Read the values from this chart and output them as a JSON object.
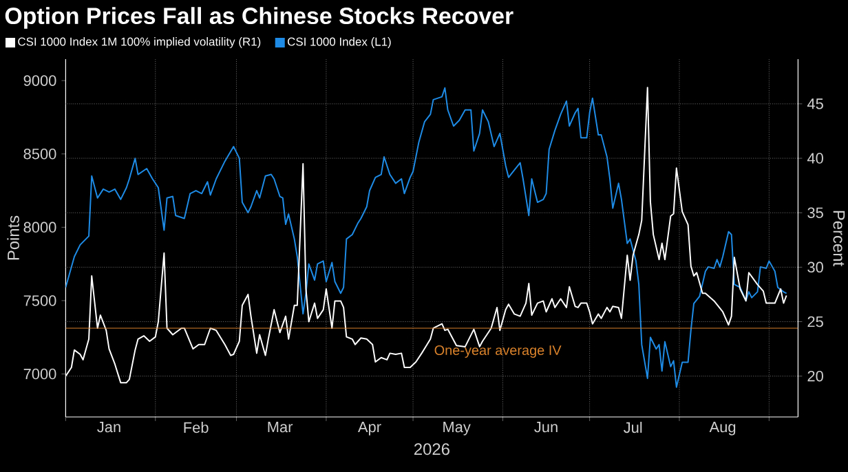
{
  "chart_data": {
    "type": "line",
    "title": "Option Prices Fall as Chinese Stocks Recover",
    "xlabel": "2026",
    "ylabel": "Points",
    "y2label": "Percent",
    "xlim": [
      "2026-01-01",
      "2026-09-11"
    ],
    "xticks": [
      {
        "value": "2026-01-01",
        "label": null
      },
      {
        "value": "2026-01-16",
        "label": "Jan"
      },
      {
        "value": "2026-02-01",
        "label": null
      },
      {
        "value": "2026-02-15",
        "label": "Feb"
      },
      {
        "value": "2026-03-01",
        "label": null
      },
      {
        "value": "2026-03-16",
        "label": "Mar"
      },
      {
        "value": "2026-04-01",
        "label": null
      },
      {
        "value": "2026-04-16",
        "label": "Apr"
      },
      {
        "value": "2026-05-01",
        "label": null
      },
      {
        "value": "2026-05-16",
        "label": "May"
      },
      {
        "value": "2026-06-01",
        "label": null
      },
      {
        "value": "2026-06-16",
        "label": "Jun"
      },
      {
        "value": "2026-07-01",
        "label": null
      },
      {
        "value": "2026-07-16",
        "label": "Jul"
      },
      {
        "value": "2026-08-01",
        "label": null
      },
      {
        "value": "2026-08-16",
        "label": "Aug"
      },
      {
        "value": "2026-09-01",
        "label": null
      }
    ],
    "ylim": [
      6707,
      9146
    ],
    "yticks": [
      7000,
      7500,
      8000,
      8500,
      9000
    ],
    "y2lim": [
      16.25,
      49.1
    ],
    "y2ticks": [
      20,
      25,
      30,
      35,
      40,
      45
    ],
    "grid": true,
    "legend": "top left",
    "line_style": "solid",
    "ref_lines": [
      {
        "axis": "y2",
        "value": 24.4,
        "label": "One-year average IV",
        "color": "#d9822b"
      }
    ],
    "series": [
      {
        "name": "CSI 1000 Index  (L1)",
        "color": "#1e8ce6",
        "axis": "y",
        "x": [
          "2026-01-01",
          "2026-01-04",
          "2026-01-06",
          "2026-01-09",
          "2026-01-10",
          "2026-01-12",
          "2026-01-14",
          "2026-01-16",
          "2026-01-17",
          "2026-01-18",
          "2026-01-20",
          "2026-01-22",
          "2026-01-23",
          "2026-01-25",
          "2026-01-26",
          "2026-01-29",
          "2026-01-31",
          "2026-02-02",
          "2026-02-04",
          "2026-02-05",
          "2026-02-07",
          "2026-02-08",
          "2026-02-11",
          "2026-02-13",
          "2026-02-15",
          "2026-02-17",
          "2026-02-19",
          "2026-02-20",
          "2026-02-22",
          "2026-02-25",
          "2026-02-28",
          "2026-03-02",
          "2026-03-03",
          "2026-03-05",
          "2026-03-06",
          "2026-03-08",
          "2026-03-09",
          "2026-03-11",
          "2026-03-13",
          "2026-03-14",
          "2026-03-16",
          "2026-03-17",
          "2026-03-18",
          "2026-03-19",
          "2026-03-21",
          "2026-03-22",
          "2026-03-24",
          "2026-03-25",
          "2026-03-26",
          "2026-03-28",
          "2026-03-29",
          "2026-03-31",
          "2026-04-01",
          "2026-04-03",
          "2026-04-04",
          "2026-04-06",
          "2026-04-07",
          "2026-04-08",
          "2026-04-10",
          "2026-04-12",
          "2026-04-13",
          "2026-04-15",
          "2026-04-16",
          "2026-04-18",
          "2026-04-20",
          "2026-04-21",
          "2026-04-23",
          "2026-04-25",
          "2026-04-27",
          "2026-04-28",
          "2026-04-30",
          "2026-05-01",
          "2026-05-03",
          "2026-05-05",
          "2026-05-07",
          "2026-05-08",
          "2026-05-11",
          "2026-05-12",
          "2026-05-13",
          "2026-05-15",
          "2026-05-17",
          "2026-05-19",
          "2026-05-21",
          "2026-05-22",
          "2026-05-24",
          "2026-05-25",
          "2026-05-27",
          "2026-05-29",
          "2026-05-31",
          "2026-06-02",
          "2026-06-03",
          "2026-06-05",
          "2026-06-07",
          "2026-06-08",
          "2026-06-10",
          "2026-06-11",
          "2026-06-13",
          "2026-06-15",
          "2026-06-16",
          "2026-06-17",
          "2026-06-19",
          "2026-06-21",
          "2026-06-23",
          "2026-06-24",
          "2026-06-26",
          "2026-06-27",
          "2026-06-28",
          "2026-06-30",
          "2026-07-01",
          "2026-07-02",
          "2026-07-04",
          "2026-07-05",
          "2026-07-07",
          "2026-07-08",
          "2026-07-09",
          "2026-07-11",
          "2026-07-12",
          "2026-07-14",
          "2026-07-15",
          "2026-07-17",
          "2026-07-18",
          "2026-07-19",
          "2026-07-21",
          "2026-07-22",
          "2026-07-24",
          "2026-07-25",
          "2026-07-26",
          "2026-07-27",
          "2026-07-29",
          "2026-07-30",
          "2026-07-31",
          "2026-08-02",
          "2026-08-04",
          "2026-08-05",
          "2026-08-06",
          "2026-08-08",
          "2026-08-10",
          "2026-08-11",
          "2026-08-13",
          "2026-08-14",
          "2026-08-15",
          "2026-08-16",
          "2026-08-18",
          "2026-08-19",
          "2026-08-20",
          "2026-08-22",
          "2026-08-24",
          "2026-08-25",
          "2026-08-26",
          "2026-08-28",
          "2026-08-29",
          "2026-08-31",
          "2026-09-01",
          "2026-09-03",
          "2026-09-04",
          "2026-09-06",
          "2026-09-07"
        ],
        "values": [
          7590,
          7800,
          7880,
          7940,
          8350,
          8200,
          8260,
          8240,
          8250,
          8260,
          8190,
          8270,
          8330,
          8470,
          8360,
          8400,
          8330,
          8270,
          7980,
          8200,
          8210,
          8080,
          8060,
          8230,
          8250,
          8230,
          8310,
          8220,
          8330,
          8450,
          8550,
          8470,
          8170,
          8100,
          8140,
          8250,
          8200,
          8350,
          8360,
          8330,
          8210,
          8200,
          8020,
          8090,
          7920,
          7800,
          7410,
          7550,
          7750,
          7640,
          7750,
          7770,
          7630,
          7760,
          7630,
          7550,
          7590,
          7920,
          7950,
          8030,
          8060,
          8140,
          8250,
          8340,
          8360,
          8480,
          8360,
          8300,
          8330,
          8230,
          8340,
          8380,
          8580,
          8720,
          8770,
          8870,
          8890,
          8950,
          8800,
          8690,
          8730,
          8800,
          8800,
          8520,
          8640,
          8800,
          8720,
          8550,
          8640,
          8420,
          8340,
          8390,
          8440,
          8330,
          8080,
          8330,
          8170,
          8190,
          8230,
          8530,
          8660,
          8770,
          8860,
          8690,
          8780,
          8810,
          8610,
          8610,
          8780,
          8880,
          8630,
          8630,
          8480,
          8330,
          8130,
          8300,
          8190,
          7890,
          7920,
          7770,
          7610,
          7200,
          6970,
          7250,
          7170,
          7200,
          7020,
          7220,
          7050,
          7090,
          6910,
          7080,
          7080,
          7300,
          7480,
          7530,
          7700,
          7730,
          7720,
          7780,
          7730,
          7800,
          7970,
          7950,
          7610,
          7590,
          7500,
          7560,
          7520,
          7560,
          7730,
          7720,
          7770,
          7700,
          7590,
          7560,
          7550
        ]
      },
      {
        "name": "CSI 1000 Index 1M 100% implied volatility (R1)",
        "color": "#ffffff",
        "axis": "y2",
        "x": [
          "2026-01-01",
          "2026-01-03",
          "2026-01-04",
          "2026-01-06",
          "2026-01-07",
          "2026-01-09",
          "2026-01-10",
          "2026-01-12",
          "2026-01-13",
          "2026-01-15",
          "2026-01-16",
          "2026-01-18",
          "2026-01-20",
          "2026-01-22",
          "2026-01-23",
          "2026-01-25",
          "2026-01-26",
          "2026-01-28",
          "2026-01-30",
          "2026-02-01",
          "2026-02-02",
          "2026-02-04",
          "2026-02-05",
          "2026-02-07",
          "2026-02-10",
          "2026-02-11",
          "2026-02-14",
          "2026-02-16",
          "2026-02-18",
          "2026-02-20",
          "2026-02-22",
          "2026-02-25",
          "2026-02-27",
          "2026-02-28",
          "2026-03-02",
          "2026-03-03",
          "2026-03-05",
          "2026-03-06",
          "2026-03-08",
          "2026-03-09",
          "2026-03-11",
          "2026-03-12",
          "2026-03-14",
          "2026-03-16",
          "2026-03-18",
          "2026-03-19",
          "2026-03-21",
          "2026-03-22",
          "2026-03-24",
          "2026-03-25",
          "2026-03-26",
          "2026-03-28",
          "2026-03-29",
          "2026-03-31",
          "2026-04-01",
          "2026-04-03",
          "2026-04-04",
          "2026-04-06",
          "2026-04-07",
          "2026-04-08",
          "2026-04-10",
          "2026-04-11",
          "2026-04-13",
          "2026-04-15",
          "2026-04-17",
          "2026-04-18",
          "2026-04-20",
          "2026-04-22",
          "2026-04-23",
          "2026-04-25",
          "2026-04-27",
          "2026-04-28",
          "2026-04-30",
          "2026-05-02",
          "2026-05-04",
          "2026-05-07",
          "2026-05-08",
          "2026-05-11",
          "2026-05-12",
          "2026-05-13",
          "2026-05-16",
          "2026-05-19",
          "2026-05-22",
          "2026-05-24",
          "2026-05-25",
          "2026-05-28",
          "2026-05-30",
          "2026-05-31",
          "2026-06-02",
          "2026-06-03",
          "2026-06-05",
          "2026-06-07",
          "2026-06-09",
          "2026-06-10",
          "2026-06-11",
          "2026-06-13",
          "2026-06-15",
          "2026-06-16",
          "2026-06-18",
          "2026-06-19",
          "2026-06-21",
          "2026-06-23",
          "2026-06-24",
          "2026-06-26",
          "2026-06-27",
          "2026-06-28",
          "2026-06-30",
          "2026-07-01",
          "2026-07-02",
          "2026-07-04",
          "2026-07-05",
          "2026-07-07",
          "2026-07-08",
          "2026-07-09",
          "2026-07-11",
          "2026-07-12",
          "2026-07-14",
          "2026-07-15",
          "2026-07-16",
          "2026-07-18",
          "2026-07-19",
          "2026-07-21",
          "2026-07-22",
          "2026-07-23",
          "2026-07-25",
          "2026-07-26",
          "2026-07-27",
          "2026-07-29",
          "2026-07-30",
          "2026-07-31",
          "2026-08-02",
          "2026-08-04",
          "2026-08-05",
          "2026-08-06",
          "2026-08-07",
          "2026-08-09",
          "2026-08-10",
          "2026-08-13",
          "2026-08-16",
          "2026-08-18",
          "2026-08-19",
          "2026-08-20",
          "2026-08-22",
          "2026-08-24",
          "2026-08-25",
          "2026-08-28",
          "2026-08-30",
          "2026-08-31",
          "2026-09-03",
          "2026-09-05",
          "2026-09-06",
          "2026-09-07"
        ],
        "values": [
          20.0,
          20.8,
          22.4,
          22.0,
          21.5,
          23.4,
          29.2,
          24.4,
          25.6,
          24.2,
          22.5,
          21.1,
          19.4,
          19.4,
          19.7,
          22.4,
          23.4,
          23.7,
          23.2,
          23.6,
          25.0,
          31.3,
          24.4,
          23.8,
          24.4,
          24.4,
          22.5,
          22.9,
          22.9,
          24.4,
          24.2,
          22.9,
          21.9,
          22.0,
          23.2,
          26.5,
          27.5,
          25.5,
          22.1,
          23.8,
          21.9,
          23.4,
          26.1,
          24.0,
          25.5,
          23.4,
          26.5,
          26.5,
          39.5,
          28.0,
          25.0,
          26.7,
          25.3,
          26.1,
          28.0,
          24.4,
          26.9,
          26.9,
          26.3,
          23.6,
          23.4,
          22.9,
          23.5,
          23.4,
          22.9,
          21.3,
          21.7,
          21.5,
          22.1,
          22.0,
          22.1,
          20.8,
          20.8,
          21.3,
          22.1,
          23.4,
          24.4,
          24.8,
          24.2,
          24.3,
          22.8,
          22.7,
          24.3,
          22.7,
          23.2,
          24.4,
          26.3,
          24.2,
          26.1,
          26.6,
          25.7,
          25.5,
          26.7,
          28.5,
          25.6,
          26.7,
          26.9,
          25.9,
          27.1,
          26.3,
          27.1,
          26.3,
          28.2,
          26.4,
          26.3,
          26.7,
          26.7,
          25.9,
          24.8,
          25.7,
          25.3,
          26.3,
          25.9,
          26.4,
          26.3,
          25.3,
          31.1,
          28.8,
          31.1,
          33.0,
          34.3,
          46.5,
          36.0,
          33.0,
          30.7,
          32.2,
          30.7,
          34.7,
          34.9,
          39.1,
          35.1,
          33.9,
          30.1,
          29.2,
          29.5,
          27.6,
          27.6,
          26.9,
          25.9,
          24.7,
          25.5,
          30.9,
          28.0,
          26.9,
          29.5,
          28.4,
          27.8,
          26.7,
          26.7,
          28.0,
          26.7,
          27.4
        ]
      }
    ]
  }
}
